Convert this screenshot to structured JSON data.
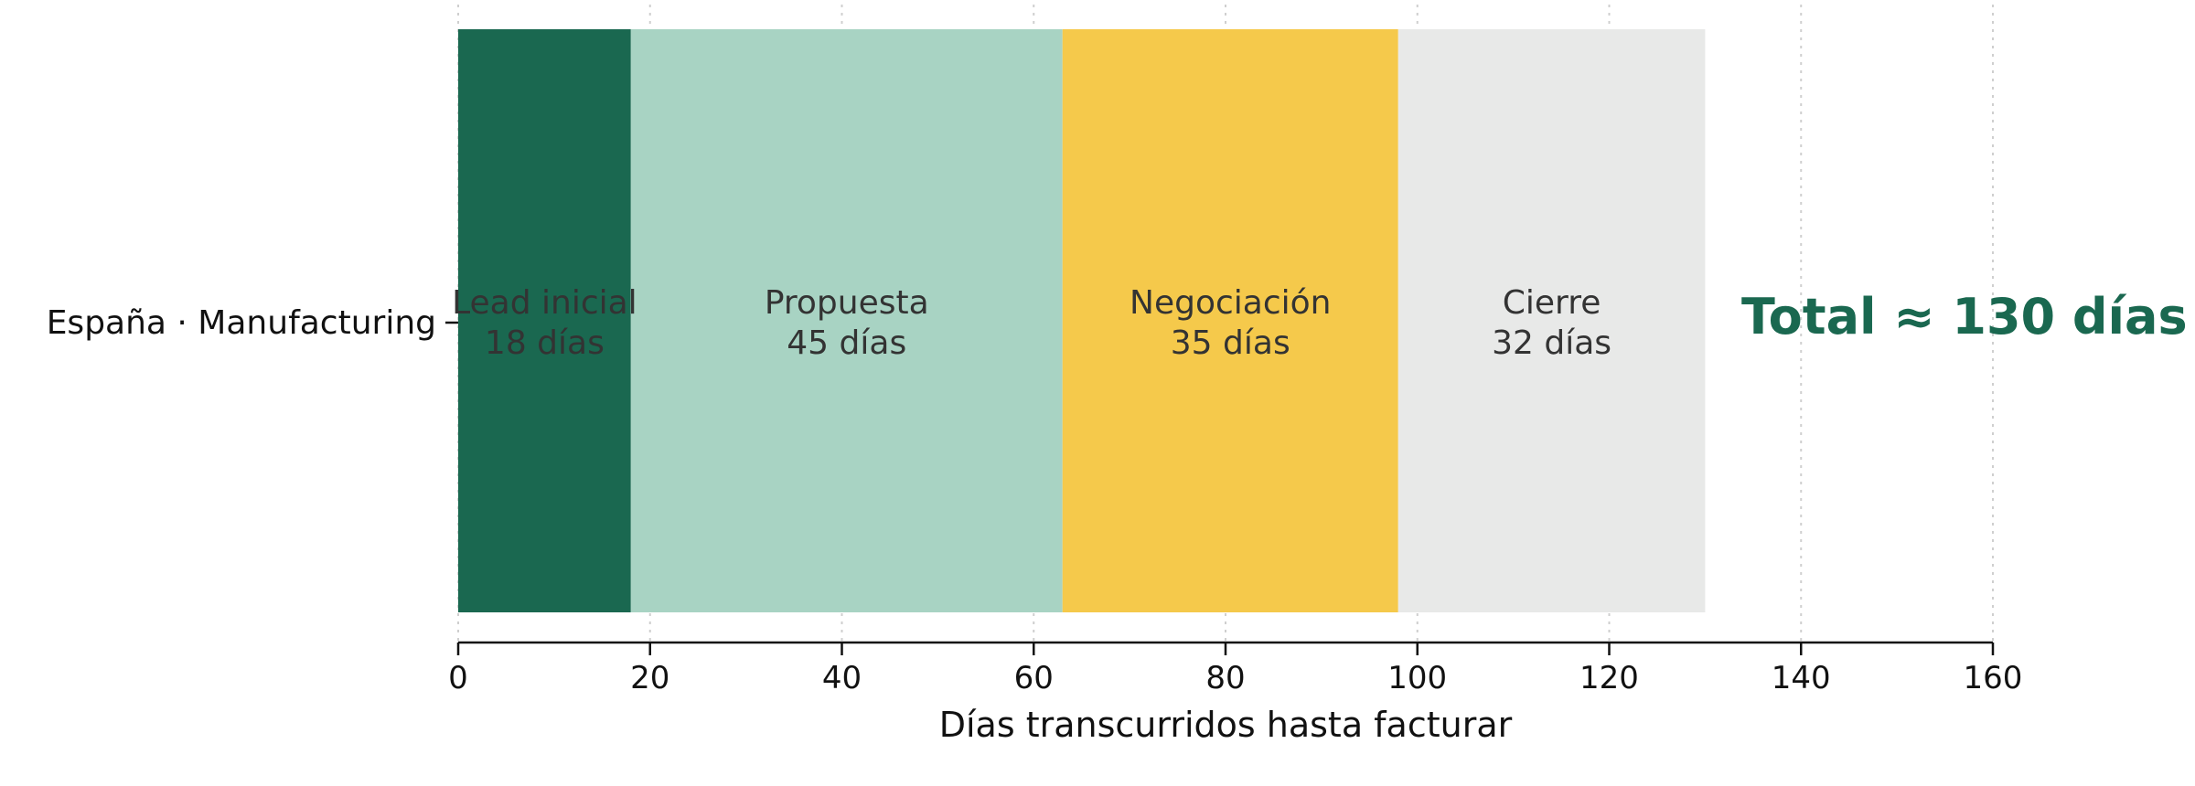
{
  "chart_data": {
    "type": "bar",
    "orientation": "horizontal",
    "stacked": true,
    "categories": [
      "España · Manufacturing"
    ],
    "series": [
      {
        "name": "Lead inicial",
        "values": [
          18
        ],
        "label": "18 días",
        "color": "#1a6850"
      },
      {
        "name": "Propuesta",
        "values": [
          45
        ],
        "label": "45 días",
        "color": "#a8d3c3"
      },
      {
        "name": "Negociación",
        "values": [
          35
        ],
        "label": "35 días",
        "color": "#f5c94b"
      },
      {
        "name": "Cierre",
        "values": [
          32
        ],
        "label": "32 días",
        "color": "#e8e9e8"
      }
    ],
    "annotation": {
      "text": "Total ≈ 130 días",
      "color": "#1a6850"
    },
    "xlabel": "Días transcurridos hasta facturar",
    "ylabel": "",
    "xlim": [
      0,
      160
    ],
    "xticks": [
      0,
      20,
      40,
      60,
      80,
      100,
      120,
      140,
      160
    ],
    "grid": "vertical dotted",
    "legend": "none"
  }
}
